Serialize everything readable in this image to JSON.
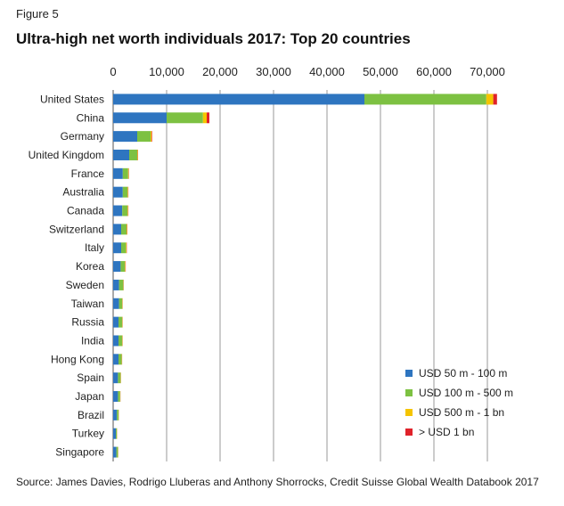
{
  "figure_label": "Figure 5",
  "source": "Source: James Davies, Rodrigo Lluberas and Anthony Shorrocks, Credit Suisse Global Wealth Databook 2017",
  "colors": {
    "series": [
      "#2e75c0",
      "#7dc142",
      "#f5c400",
      "#e0222a"
    ],
    "grid": "#9a9a9a",
    "axis": "#555555"
  },
  "chart_data": {
    "type": "bar",
    "orientation": "horizontal",
    "stacked": true,
    "title": "Ultra-high net worth individuals 2017: Top 20 countries",
    "xlabel": "",
    "ylabel": "",
    "xlim": [
      0,
      75000
    ],
    "xticks": [
      0,
      10000,
      20000,
      30000,
      40000,
      50000,
      60000,
      70000
    ],
    "xtick_labels": [
      "0",
      "10,000",
      "20,000",
      "30,000",
      "40,000",
      "50,000",
      "60,000",
      "70,000"
    ],
    "grid": true,
    "legend_position": "bottom-right",
    "categories": [
      "United States",
      "China",
      "Germany",
      "United Kingdom",
      "France",
      "Australia",
      "Canada",
      "Switzerland",
      "Italy",
      "Korea",
      "Sweden",
      "Taiwan",
      "Russia",
      "India",
      "Hong Kong",
      "Spain",
      "Japan",
      "Brazil",
      "Turkey",
      "Singapore"
    ],
    "series": [
      {
        "name": "USD 50 m - 100 m",
        "values": [
          47000,
          10000,
          4500,
          3000,
          1800,
          1800,
          1700,
          1500,
          1500,
          1400,
          1100,
          1100,
          1000,
          1000,
          1000,
          900,
          900,
          700,
          500,
          600
        ]
      },
      {
        "name": "USD 100 m - 500 m",
        "values": [
          22800,
          6800,
          2500,
          1500,
          1000,
          900,
          1000,
          1000,
          900,
          800,
          800,
          600,
          700,
          700,
          600,
          500,
          400,
          300,
          200,
          300
        ]
      },
      {
        "name": "USD 500 m - 1 bn",
        "values": [
          1300,
          700,
          200,
          100,
          100,
          100,
          100,
          100,
          100,
          100,
          50,
          50,
          50,
          50,
          50,
          50,
          50,
          40,
          30,
          30
        ]
      },
      {
        "name": "> USD 1 bn",
        "values": [
          700,
          500,
          100,
          50,
          50,
          50,
          50,
          50,
          50,
          50,
          30,
          30,
          30,
          30,
          30,
          20,
          20,
          20,
          20,
          20
        ]
      }
    ]
  }
}
